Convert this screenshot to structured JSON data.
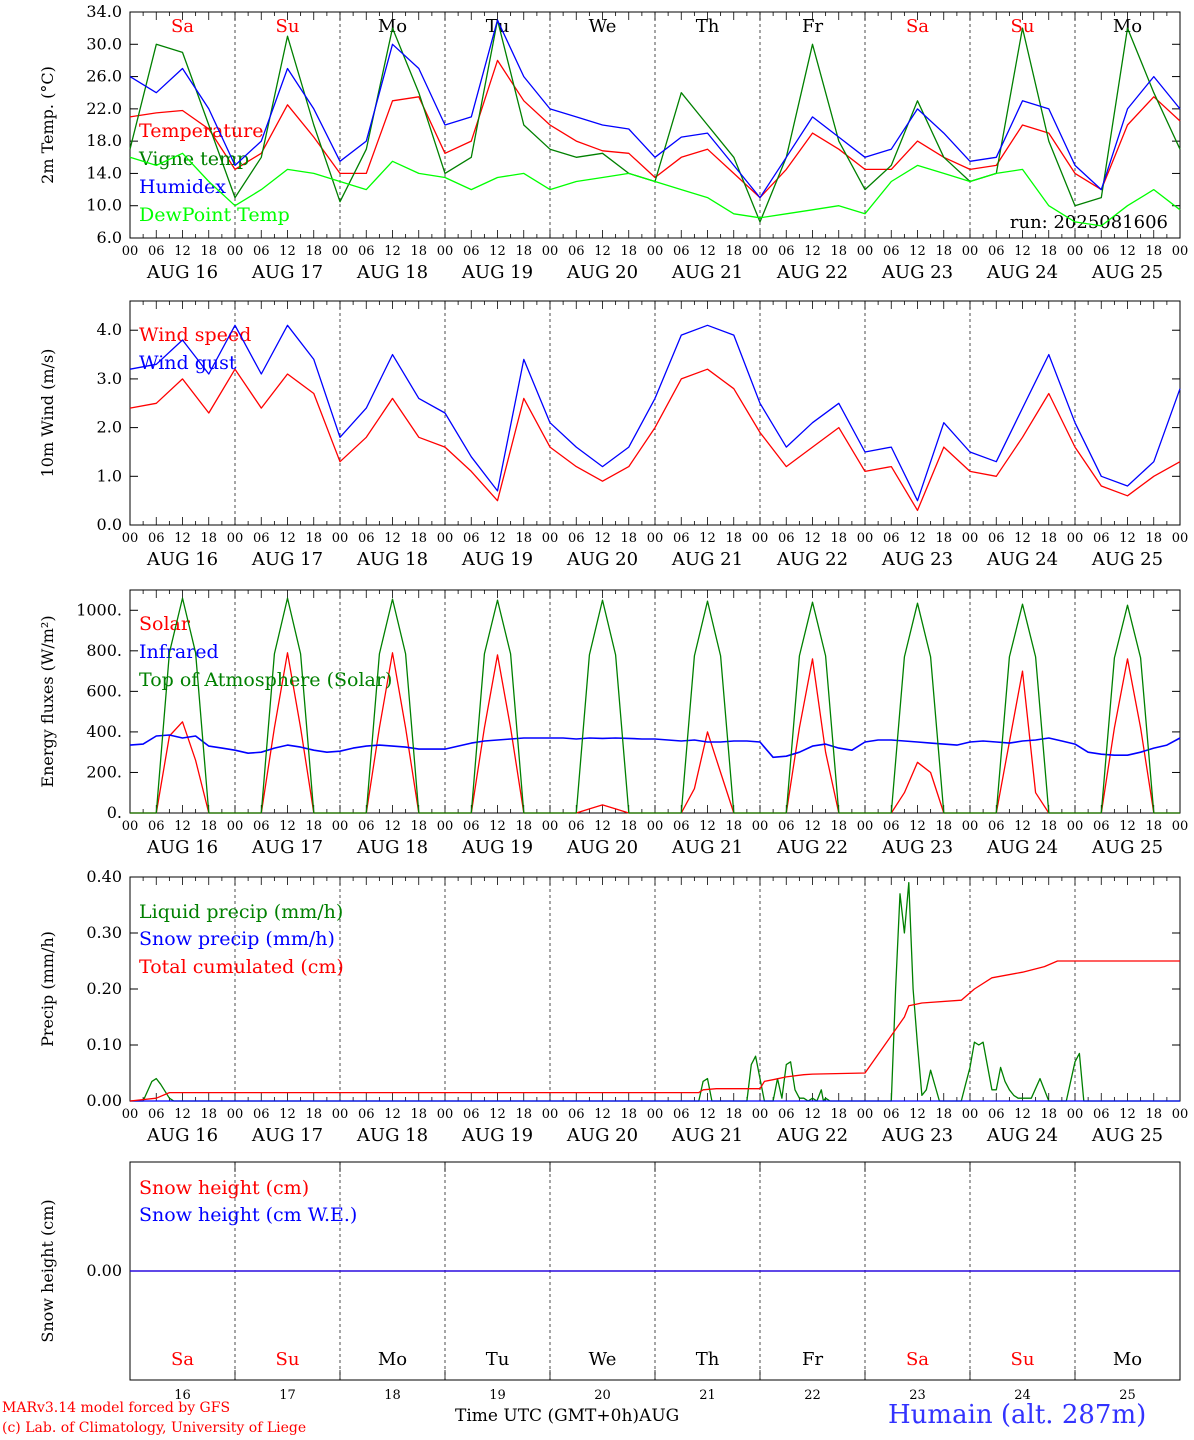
{
  "colors": {
    "red": "#ff0000",
    "dark_green": "#008000",
    "blue": "#0000ff",
    "light_green": "#00ff00",
    "axis": "#000000",
    "station": "#3333ff"
  },
  "footer": {
    "credit_line1": "MARv3.14 model forced by GFS",
    "credit_line2": "(c) Lab. of Climatology, University of Liege",
    "x_title": "Time UTC (GMT+0h)",
    "x_month": "AUG",
    "station": "Humain (alt. 287m)"
  },
  "chart_data": [
    {
      "type": "line",
      "ylabel": "2m Temp. (°C)",
      "ylim": [
        6,
        34
      ],
      "yticks": [
        "6.0",
        "10.0",
        "14.0",
        "18.0",
        "22.0",
        "26.0",
        "30.0",
        "34.0"
      ],
      "ytick_values": [
        6,
        10,
        14,
        18,
        22,
        26,
        30,
        34
      ],
      "annotation": "run: 2025081606",
      "day_labels": [
        "Sa",
        "Su",
        "Mo",
        "Tu",
        "We",
        "Th",
        "Fr",
        "Sa",
        "Su",
        "Mo"
      ],
      "day_label_colors": [
        "#ff0000",
        "#ff0000",
        "#000000",
        "#000000",
        "#000000",
        "#000000",
        "#000000",
        "#ff0000",
        "#ff0000",
        "#000000"
      ],
      "hour_labels": [
        "00",
        "06",
        "12",
        "18"
      ],
      "date_labels": [
        "AUG 16",
        "AUG 17",
        "AUG 18",
        "AUG 19",
        "AUG 20",
        "AUG 21",
        "AUG 22",
        "AUG 23",
        "AUG 24",
        "AUG 25"
      ],
      "x_hours": [
        0,
        6,
        12,
        18,
        24,
        30,
        36,
        42,
        48,
        54,
        60,
        66,
        72,
        78,
        84,
        90,
        96,
        102,
        108,
        114,
        120,
        126,
        132,
        138,
        144,
        150,
        156,
        162,
        168,
        174,
        180,
        186,
        192,
        198,
        204,
        210,
        216,
        222,
        228,
        234,
        240
      ],
      "series": [
        {
          "name": "Temperature",
          "color": "#ff0000",
          "values": [
            21,
            21.5,
            21.8,
            19.5,
            14.5,
            16.5,
            22.5,
            18.5,
            14,
            14,
            23,
            23.5,
            16.5,
            18,
            28,
            23,
            20,
            18,
            16.8,
            16.5,
            13.5,
            16,
            17,
            14,
            11,
            14.5,
            19,
            17,
            14.5,
            14.5,
            18,
            16,
            14.5,
            15,
            20,
            19,
            14,
            12,
            20,
            23.5,
            20.5
          ]
        },
        {
          "name": "Vigne temp",
          "color": "#008000",
          "values": [
            17,
            30,
            29,
            20,
            11,
            16,
            31,
            20,
            10.5,
            17,
            32,
            24,
            14,
            16,
            33,
            20,
            17,
            16,
            16.5,
            14,
            13,
            24,
            20,
            16,
            8,
            16,
            30,
            18,
            12,
            15,
            23,
            16,
            13,
            14,
            32,
            18,
            10,
            11,
            32,
            24,
            17
          ]
        },
        {
          "name": "Humidex",
          "color": "#0000ff",
          "values": [
            26,
            24,
            27,
            22,
            15,
            18,
            27,
            22,
            15.5,
            18,
            30,
            27,
            20,
            21,
            33,
            26,
            22,
            21,
            20,
            19.5,
            16,
            18.5,
            19,
            15,
            11,
            16,
            21,
            18.5,
            16,
            17,
            22,
            19,
            15.5,
            16,
            23,
            22,
            15,
            12,
            22,
            26,
            22
          ]
        },
        {
          "name": "DewPoint Temp",
          "color": "#00ff00",
          "values": [
            16,
            15,
            16.5,
            13,
            10,
            12,
            14.5,
            14,
            13,
            12,
            15.5,
            14,
            13.5,
            12,
            13.5,
            14,
            12,
            13,
            13.5,
            14,
            13,
            12,
            11,
            9,
            8.5,
            9,
            9.5,
            10,
            9,
            13,
            15,
            14,
            13,
            14,
            14.5,
            10,
            8,
            7.5,
            10,
            12,
            9.5
          ]
        }
      ]
    },
    {
      "type": "line",
      "ylabel": "10m Wind (m/s)",
      "ylim": [
        0,
        4.6
      ],
      "yticks": [
        "0.0",
        "1.0",
        "2.0",
        "3.0",
        "4.0"
      ],
      "ytick_values": [
        0,
        1,
        2,
        3,
        4
      ],
      "hour_labels": [
        "00",
        "06",
        "12",
        "18"
      ],
      "date_labels": [
        "AUG 16",
        "AUG 17",
        "AUG 18",
        "AUG 19",
        "AUG 20",
        "AUG 21",
        "AUG 22",
        "AUG 23",
        "AUG 24",
        "AUG 25"
      ],
      "x_hours": [
        0,
        6,
        12,
        18,
        24,
        30,
        36,
        42,
        48,
        54,
        60,
        66,
        72,
        78,
        84,
        90,
        96,
        102,
        108,
        114,
        120,
        126,
        132,
        138,
        144,
        150,
        156,
        162,
        168,
        174,
        180,
        186,
        192,
        198,
        204,
        210,
        216,
        222,
        228,
        234,
        240
      ],
      "series": [
        {
          "name": "Wind speed",
          "color": "#ff0000",
          "values": [
            2.4,
            2.5,
            3.0,
            2.3,
            3.2,
            2.4,
            3.1,
            2.7,
            1.3,
            1.8,
            2.6,
            1.8,
            1.6,
            1.1,
            0.5,
            2.6,
            1.6,
            1.2,
            0.9,
            1.2,
            2.0,
            3.0,
            3.2,
            2.8,
            1.9,
            1.2,
            1.6,
            2.0,
            1.1,
            1.2,
            0.3,
            1.6,
            1.1,
            1.0,
            1.8,
            2.7,
            1.6,
            0.8,
            0.6,
            1.0,
            1.3
          ]
        },
        {
          "name": "Wind gust",
          "color": "#0000ff",
          "values": [
            3.2,
            3.3,
            3.8,
            3.1,
            4.1,
            3.1,
            4.1,
            3.4,
            1.8,
            2.4,
            3.5,
            2.6,
            2.3,
            1.4,
            0.7,
            3.4,
            2.1,
            1.6,
            1.2,
            1.6,
            2.6,
            3.9,
            4.1,
            3.9,
            2.5,
            1.6,
            2.1,
            2.5,
            1.5,
            1.6,
            0.5,
            2.1,
            1.5,
            1.3,
            2.4,
            3.5,
            2.1,
            1.0,
            0.8,
            1.3,
            2.8
          ]
        }
      ]
    },
    {
      "type": "line",
      "ylabel": "Energy fluxes (W/m²)",
      "ylim": [
        0,
        1100
      ],
      "yticks": [
        "0.",
        "200.",
        "400.",
        "600.",
        "800.",
        "1000."
      ],
      "ytick_values": [
        0,
        200,
        400,
        600,
        800,
        1000
      ],
      "hour_labels": [
        "00",
        "06",
        "12",
        "18"
      ],
      "date_labels": [
        "AUG 16",
        "AUG 17",
        "AUG 18",
        "AUG 19",
        "AUG 20",
        "AUG 21",
        "AUG 22",
        "AUG 23",
        "AUG 24",
        "AUG 25"
      ],
      "x_hours": [
        0,
        3,
        6,
        9,
        12,
        15,
        18,
        21,
        24,
        27,
        30,
        33,
        36,
        39,
        42,
        45,
        48,
        51,
        54,
        57,
        60,
        63,
        66,
        69,
        72,
        75,
        78,
        81,
        84,
        87,
        90,
        93,
        96,
        99,
        102,
        105,
        108,
        111,
        114,
        117,
        120,
        123,
        126,
        129,
        132,
        135,
        138,
        141,
        144,
        147,
        150,
        153,
        156,
        159,
        162,
        165,
        168,
        171,
        174,
        177,
        180,
        183,
        186,
        189,
        192,
        195,
        198,
        201,
        204,
        207,
        210,
        213,
        216,
        219,
        222,
        225,
        228,
        231,
        234,
        237,
        240
      ],
      "series": [
        {
          "name": "Solar",
          "color": "#ff0000",
          "values": [
            0,
            0,
            0,
            380,
            450,
            260,
            0,
            0,
            0,
            0,
            0,
            420,
            790,
            420,
            0,
            0,
            0,
            0,
            0,
            420,
            790,
            420,
            0,
            0,
            0,
            0,
            0,
            420,
            780,
            420,
            0,
            0,
            0,
            0,
            0,
            20,
            40,
            20,
            0,
            0,
            0,
            0,
            0,
            120,
            400,
            200,
            0,
            0,
            0,
            0,
            0,
            420,
            760,
            300,
            0,
            0,
            0,
            0,
            0,
            100,
            250,
            200,
            0,
            0,
            0,
            0,
            0,
            350,
            700,
            100,
            0,
            0,
            0,
            0,
            0,
            420,
            760,
            420,
            0,
            0,
            0
          ]
        },
        {
          "name": "Infrared",
          "color": "#0000ff",
          "values": [
            335,
            340,
            380,
            385,
            370,
            380,
            330,
            320,
            310,
            295,
            300,
            320,
            335,
            325,
            310,
            300,
            305,
            320,
            330,
            335,
            330,
            325,
            315,
            315,
            315,
            330,
            345,
            355,
            360,
            365,
            370,
            370,
            370,
            370,
            365,
            370,
            368,
            370,
            368,
            365,
            365,
            360,
            355,
            360,
            350,
            350,
            355,
            355,
            350,
            275,
            280,
            300,
            330,
            340,
            320,
            310,
            350,
            360,
            360,
            355,
            350,
            345,
            340,
            335,
            350,
            355,
            350,
            345,
            355,
            360,
            370,
            355,
            340,
            300,
            290,
            285,
            285,
            300,
            320,
            335,
            370
          ]
        },
        {
          "name": "Top of Atmosphere (Solar)",
          "color": "#008000",
          "values": [
            0,
            0,
            0,
            790,
            1060,
            790,
            0,
            0,
            0,
            0,
            0,
            785,
            1060,
            785,
            0,
            0,
            0,
            0,
            0,
            785,
            1055,
            785,
            0,
            0,
            0,
            0,
            0,
            785,
            1050,
            785,
            0,
            0,
            0,
            0,
            0,
            780,
            1050,
            780,
            0,
            0,
            0,
            0,
            0,
            775,
            1045,
            775,
            0,
            0,
            0,
            0,
            0,
            775,
            1040,
            775,
            0,
            0,
            0,
            0,
            0,
            770,
            1035,
            770,
            0,
            0,
            0,
            0,
            0,
            770,
            1030,
            770,
            0,
            0,
            0,
            0,
            0,
            765,
            1025,
            765,
            0,
            0,
            0
          ]
        }
      ]
    },
    {
      "type": "line",
      "ylabel": "Precip (mm/h)",
      "ylim": [
        0,
        0.4
      ],
      "yticks": [
        "0.00",
        "0.10",
        "0.20",
        "0.30",
        "0.40"
      ],
      "ytick_values": [
        0,
        0.1,
        0.2,
        0.3,
        0.4
      ],
      "hour_labels": [
        "00",
        "06",
        "12",
        "18"
      ],
      "date_labels": [
        "AUG 16",
        "AUG 17",
        "AUG 18",
        "AUG 19",
        "AUG 20",
        "AUG 21",
        "AUG 22",
        "AUG 23",
        "AUG 24",
        "AUG 25"
      ],
      "series": [
        {
          "name": "Liquid precip (mm/h)",
          "color": "#008000",
          "x": [
            0,
            3,
            5,
            6,
            7,
            9,
            10,
            12,
            130,
            131,
            132,
            133,
            141,
            142,
            143,
            144,
            145,
            147,
            148,
            149,
            150,
            151,
            152,
            153,
            154,
            155,
            156,
            157,
            158,
            158.5,
            159,
            160,
            165,
            168,
            174,
            175,
            176,
            177,
            178,
            179,
            180,
            181,
            182,
            183,
            185,
            190,
            191,
            192,
            193,
            194,
            195,
            197,
            198,
            199,
            200,
            201,
            202,
            203,
            205,
            206,
            208,
            210,
            214,
            216,
            217,
            218,
            240
          ],
          "values": [
            0,
            0,
            0.035,
            0.04,
            0.03,
            0.005,
            0,
            0,
            0,
            0.035,
            0.04,
            0,
            0,
            0.065,
            0.08,
            0.04,
            0,
            0,
            0.04,
            0.005,
            0.065,
            0.07,
            0.02,
            0.005,
            0.005,
            0,
            0.005,
            0,
            0.02,
            0,
            0.005,
            0,
            0,
            0,
            0,
            0.2,
            0.37,
            0.3,
            0.39,
            0.2,
            0.1,
            0.01,
            0.02,
            0.055,
            0,
            0,
            0.03,
            0.06,
            0.105,
            0.1,
            0.105,
            0.02,
            0.02,
            0.06,
            0.035,
            0.02,
            0.01,
            0.005,
            0.005,
            0.005,
            0.04,
            0,
            0,
            0.07,
            0.085,
            0,
            0
          ]
        },
        {
          "name": "Snow precip (mm/h)",
          "color": "#0000ff",
          "x": [
            0,
            240
          ],
          "values": [
            0,
            0
          ]
        },
        {
          "name": "Total cumulated (cm)",
          "color": "#ff0000",
          "x": [
            0,
            6,
            9,
            130,
            131,
            134,
            144,
            145,
            147,
            150,
            154,
            156,
            168,
            177,
            178,
            181,
            190,
            193,
            197,
            204,
            209,
            212,
            240
          ],
          "values": [
            0,
            0.005,
            0.015,
            0.015,
            0.02,
            0.022,
            0.022,
            0.035,
            0.038,
            0.043,
            0.047,
            0.048,
            0.05,
            0.15,
            0.17,
            0.175,
            0.18,
            0.2,
            0.22,
            0.23,
            0.24,
            0.25,
            0.25
          ]
        }
      ]
    },
    {
      "type": "line",
      "ylabel": "Snow height (cm)",
      "yticks": [
        "0.00"
      ],
      "ytick_values": [
        0
      ],
      "day_labels": [
        "Sa",
        "Su",
        "Mo",
        "Tu",
        "We",
        "Th",
        "Fr",
        "Sa",
        "Su",
        "Mo"
      ],
      "day_label_colors": [
        "#ff0000",
        "#ff0000",
        "#000000",
        "#000000",
        "#000000",
        "#000000",
        "#000000",
        "#ff0000",
        "#ff0000",
        "#000000"
      ],
      "day_numbers": [
        "16",
        "17",
        "18",
        "19",
        "20",
        "21",
        "22",
        "23",
        "24",
        "25"
      ],
      "series": [
        {
          "name": "Snow height (cm)",
          "color": "#ff0000",
          "x": [
            0,
            240
          ],
          "values": [
            0,
            0
          ]
        },
        {
          "name": "Snow height (cm W.E.)",
          "color": "#0000ff",
          "x": [
            0,
            240
          ],
          "values": [
            0,
            0
          ]
        }
      ]
    }
  ]
}
